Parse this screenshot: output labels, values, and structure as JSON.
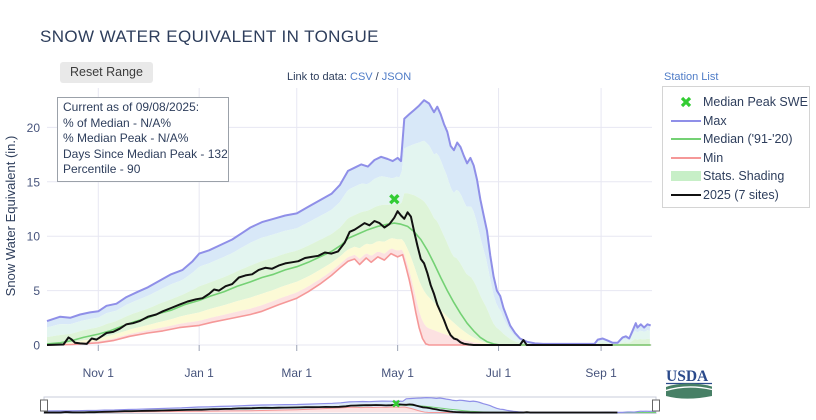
{
  "page": {
    "title": "SNOW WATER EQUIVALENT IN TONGUE"
  },
  "toolbar": {
    "reset_button": "Reset Range",
    "link_to_data_prefix": "Link to data: ",
    "csv_link": "CSV",
    "separator": " / ",
    "json_link": "JSON",
    "station_list_link": "Station List"
  },
  "info_box": {
    "lines": [
      "Current as of 09/08/2025:",
      "% of Median - N/A%",
      "% Median Peak - N/A%",
      "Days Since Median Peak - 132",
      "Percentile - 90"
    ]
  },
  "legend": {
    "items": [
      {
        "label": "Median Peak SWE",
        "swatch": "x-marker",
        "color": "#33cc33"
      },
      {
        "label": "Max",
        "swatch": "line",
        "color": "#8f8fe8"
      },
      {
        "label": "Median ('91-'20)",
        "swatch": "line",
        "color": "#74d174"
      },
      {
        "label": "Min",
        "swatch": "line",
        "color": "#f59898"
      },
      {
        "label": "Stats. Shading",
        "swatch": "fill",
        "color": "#c7efc7"
      },
      {
        "label": "2025 (7 sites)",
        "swatch": "line-bold",
        "color": "#111111"
      }
    ]
  },
  "usda_logo": {
    "text": "USDA"
  },
  "chart_data": {
    "type": "line",
    "title": "SNOW WATER EQUIVALENT IN TONGUE",
    "ylabel": "Snow Water Equivalent (in.)",
    "ylim": [
      0,
      23.5
    ],
    "yticks": [
      0,
      5,
      10,
      15,
      20
    ],
    "x_unit": "days since Oct 1 (water year Oct 1 - Sep 30)",
    "xticks": [
      {
        "label": "Nov 1",
        "day": 31
      },
      {
        "label": "Jan 1",
        "day": 92
      },
      {
        "label": "Mar 1",
        "day": 151
      },
      {
        "label": "May 1",
        "day": 212
      },
      {
        "label": "Jul 1",
        "day": 273
      },
      {
        "label": "Sep 1",
        "day": 335
      }
    ],
    "grid": true,
    "legend_position": "outside-right",
    "marker": {
      "name": "Median Peak SWE",
      "day": 210,
      "value": 13.4,
      "color": "#33cc33"
    },
    "shading": {
      "note": "percentile bands between Min/Median/Max",
      "upper_fracs": [
        0.72,
        0.3
      ],
      "lower_fracs": [
        0.52,
        0.18
      ],
      "colors": [
        "#d8e8f8",
        "#e3f5f0",
        "#def4d8",
        "#fcfad6",
        "#fce1e1"
      ]
    },
    "series": [
      {
        "name": "Max",
        "color": "#8f8fe8",
        "width": 2,
        "points": [
          [
            0,
            2.2
          ],
          [
            8,
            2.6
          ],
          [
            14,
            2.5
          ],
          [
            20,
            2.8
          ],
          [
            26,
            3.0
          ],
          [
            31,
            3.1
          ],
          [
            36,
            3.6
          ],
          [
            42,
            3.8
          ],
          [
            48,
            4.4
          ],
          [
            55,
            4.9
          ],
          [
            61,
            5.3
          ],
          [
            68,
            5.9
          ],
          [
            75,
            6.5
          ],
          [
            82,
            6.9
          ],
          [
            88,
            7.7
          ],
          [
            92,
            8.4
          ],
          [
            98,
            8.7
          ],
          [
            105,
            9.2
          ],
          [
            112,
            9.7
          ],
          [
            118,
            10.3
          ],
          [
            123,
            10.8
          ],
          [
            130,
            11.3
          ],
          [
            137,
            11.6
          ],
          [
            144,
            11.9
          ],
          [
            151,
            12.1
          ],
          [
            158,
            12.7
          ],
          [
            165,
            13.3
          ],
          [
            172,
            13.9
          ],
          [
            177,
            14.7
          ],
          [
            182,
            16.0
          ],
          [
            186,
            16.3
          ],
          [
            190,
            16.6
          ],
          [
            194,
            16.4
          ],
          [
            198,
            17.0
          ],
          [
            202,
            17.3
          ],
          [
            206,
            17.1
          ],
          [
            209,
            16.9
          ],
          [
            212,
            17.2
          ],
          [
            214,
            16.9
          ],
          [
            216,
            20.8
          ],
          [
            219,
            21.2
          ],
          [
            222,
            21.6
          ],
          [
            225,
            22.0
          ],
          [
            228,
            22.5
          ],
          [
            231,
            22.2
          ],
          [
            234,
            21.4
          ],
          [
            236,
            21.9
          ],
          [
            238,
            21.2
          ],
          [
            240,
            20.3
          ],
          [
            242,
            19.6
          ],
          [
            244,
            18.3
          ],
          [
            246,
            17.9
          ],
          [
            248,
            18.6
          ],
          [
            250,
            18.2
          ],
          [
            252,
            17.4
          ],
          [
            254,
            16.7
          ],
          [
            256,
            17.2
          ],
          [
            258,
            16.5
          ],
          [
            260,
            15.2
          ],
          [
            262,
            13.4
          ],
          [
            264,
            11.9
          ],
          [
            266,
            10.5
          ],
          [
            268,
            8.2
          ],
          [
            270,
            6.3
          ],
          [
            272,
            5.0
          ],
          [
            274,
            4.5
          ],
          [
            276,
            3.4
          ],
          [
            278,
            2.6
          ],
          [
            280,
            1.8
          ],
          [
            283,
            1.1
          ],
          [
            286,
            0.6
          ],
          [
            290,
            0.3
          ],
          [
            295,
            0.15
          ],
          [
            300,
            0.1
          ],
          [
            310,
            0.1
          ],
          [
            320,
            0.1
          ],
          [
            331,
            0.1
          ],
          [
            333,
            0.5
          ],
          [
            336,
            0.6
          ],
          [
            339,
            0.4
          ],
          [
            342,
            0.2
          ],
          [
            345,
            0.2
          ],
          [
            348,
            0.7
          ],
          [
            350,
            0.8
          ],
          [
            352,
            0.6
          ],
          [
            354,
            1.3
          ],
          [
            356,
            2.0
          ],
          [
            357,
            1.6
          ],
          [
            359,
            1.9
          ],
          [
            361,
            1.6
          ],
          [
            363,
            1.9
          ],
          [
            365,
            1.8
          ]
        ]
      },
      {
        "name": "Median ('91-'20)",
        "color": "#74d174",
        "width": 1.6,
        "points": [
          [
            0,
            0.1
          ],
          [
            8,
            0.2
          ],
          [
            15,
            0.4
          ],
          [
            22,
            0.7
          ],
          [
            31,
            1.0
          ],
          [
            38,
            1.3
          ],
          [
            45,
            1.7
          ],
          [
            52,
            2.1
          ],
          [
            61,
            2.5
          ],
          [
            68,
            2.9
          ],
          [
            75,
            3.2
          ],
          [
            83,
            3.7
          ],
          [
            92,
            4.1
          ],
          [
            99,
            4.5
          ],
          [
            107,
            4.9
          ],
          [
            115,
            5.4
          ],
          [
            123,
            5.8
          ],
          [
            130,
            6.2
          ],
          [
            137,
            6.5
          ],
          [
            144,
            6.9
          ],
          [
            151,
            7.2
          ],
          [
            158,
            7.6
          ],
          [
            165,
            8.1
          ],
          [
            172,
            8.6
          ],
          [
            178,
            9.2
          ],
          [
            182,
            9.8
          ],
          [
            188,
            10.2
          ],
          [
            194,
            10.6
          ],
          [
            200,
            10.9
          ],
          [
            206,
            11.1
          ],
          [
            210,
            11.2
          ],
          [
            214,
            11.1
          ],
          [
            218,
            10.9
          ],
          [
            222,
            10.4
          ],
          [
            226,
            9.7
          ],
          [
            230,
            8.7
          ],
          [
            234,
            7.5
          ],
          [
            238,
            6.2
          ],
          [
            242,
            5.0
          ],
          [
            246,
            3.9
          ],
          [
            250,
            2.9
          ],
          [
            254,
            2.0
          ],
          [
            258,
            1.3
          ],
          [
            262,
            0.7
          ],
          [
            266,
            0.3
          ],
          [
            270,
            0.1
          ],
          [
            274,
            0
          ],
          [
            365,
            0
          ]
        ]
      },
      {
        "name": "Min",
        "color": "#f59898",
        "width": 1.6,
        "points": [
          [
            0,
            0
          ],
          [
            15,
            0.05
          ],
          [
            31,
            0.2
          ],
          [
            40,
            0.4
          ],
          [
            50,
            0.8
          ],
          [
            61,
            1.1
          ],
          [
            70,
            1.3
          ],
          [
            80,
            1.6
          ],
          [
            92,
            1.8
          ],
          [
            100,
            2.1
          ],
          [
            110,
            2.4
          ],
          [
            123,
            2.8
          ],
          [
            130,
            3.1
          ],
          [
            140,
            3.7
          ],
          [
            151,
            4.3
          ],
          [
            158,
            4.9
          ],
          [
            165,
            5.6
          ],
          [
            172,
            6.4
          ],
          [
            178,
            7.2
          ],
          [
            182,
            7.7
          ],
          [
            186,
            7.9
          ],
          [
            189,
            7.4
          ],
          [
            193,
            8.0
          ],
          [
            196,
            7.6
          ],
          [
            200,
            8.1
          ],
          [
            204,
            7.8
          ],
          [
            208,
            8.4
          ],
          [
            212,
            8.1
          ],
          [
            215,
            8.3
          ],
          [
            217,
            7.2
          ],
          [
            219,
            6.0
          ],
          [
            221,
            4.6
          ],
          [
            223,
            3.0
          ],
          [
            225,
            1.6
          ],
          [
            227,
            0.6
          ],
          [
            229,
            0.1
          ],
          [
            231,
            0
          ],
          [
            365,
            0
          ]
        ]
      },
      {
        "name": "2025 (7 sites)",
        "color": "#111111",
        "width": 2,
        "points": [
          [
            0,
            0
          ],
          [
            10,
            0.05
          ],
          [
            13,
            0.7
          ],
          [
            15,
            0.5
          ],
          [
            17,
            0.2
          ],
          [
            20,
            0.15
          ],
          [
            24,
            0.1
          ],
          [
            27,
            0.6
          ],
          [
            30,
            0.5
          ],
          [
            33,
            0.8
          ],
          [
            36,
            1.1
          ],
          [
            40,
            1.2
          ],
          [
            44,
            1.5
          ],
          [
            48,
            1.9
          ],
          [
            52,
            2.0
          ],
          [
            56,
            2.2
          ],
          [
            61,
            2.6
          ],
          [
            66,
            2.8
          ],
          [
            70,
            3.1
          ],
          [
            75,
            3.4
          ],
          [
            80,
            3.7
          ],
          [
            85,
            4.0
          ],
          [
            90,
            4.2
          ],
          [
            94,
            4.3
          ],
          [
            98,
            4.7
          ],
          [
            101,
            5.1
          ],
          [
            104,
            5.0
          ],
          [
            108,
            5.4
          ],
          [
            112,
            5.6
          ],
          [
            116,
            6.2
          ],
          [
            120,
            6.4
          ],
          [
            124,
            6.5
          ],
          [
            128,
            6.9
          ],
          [
            132,
            7.1
          ],
          [
            136,
            7.0
          ],
          [
            140,
            7.3
          ],
          [
            144,
            7.5
          ],
          [
            148,
            7.6
          ],
          [
            152,
            7.7
          ],
          [
            156,
            8.0
          ],
          [
            160,
            8.1
          ],
          [
            164,
            8.2
          ],
          [
            168,
            8.5
          ],
          [
            172,
            8.4
          ],
          [
            176,
            8.6
          ],
          [
            180,
            9.4
          ],
          [
            183,
            10.4
          ],
          [
            186,
            10.6
          ],
          [
            189,
            10.9
          ],
          [
            192,
            11.2
          ],
          [
            195,
            11.0
          ],
          [
            198,
            11.4
          ],
          [
            201,
            11.2
          ],
          [
            204,
            10.8
          ],
          [
            207,
            11.1
          ],
          [
            210,
            11.7
          ],
          [
            212,
            12.3
          ],
          [
            214,
            11.9
          ],
          [
            216,
            11.6
          ],
          [
            218,
            12.2
          ],
          [
            220,
            11.8
          ],
          [
            222,
            10.4
          ],
          [
            224,
            9.1
          ],
          [
            226,
            7.9
          ],
          [
            228,
            7.5
          ],
          [
            230,
            6.6
          ],
          [
            232,
            5.5
          ],
          [
            234,
            4.7
          ],
          [
            236,
            3.7
          ],
          [
            238,
            3.0
          ],
          [
            240,
            2.3
          ],
          [
            242,
            1.5
          ],
          [
            244,
            0.9
          ],
          [
            246,
            0.6
          ],
          [
            248,
            0.5
          ],
          [
            250,
            0.25
          ],
          [
            252,
            0.12
          ],
          [
            255,
            0.05
          ],
          [
            258,
            0
          ],
          [
            286,
            0
          ],
          [
            288,
            0.45
          ],
          [
            290,
            0
          ],
          [
            342,
            0
          ]
        ]
      }
    ]
  }
}
